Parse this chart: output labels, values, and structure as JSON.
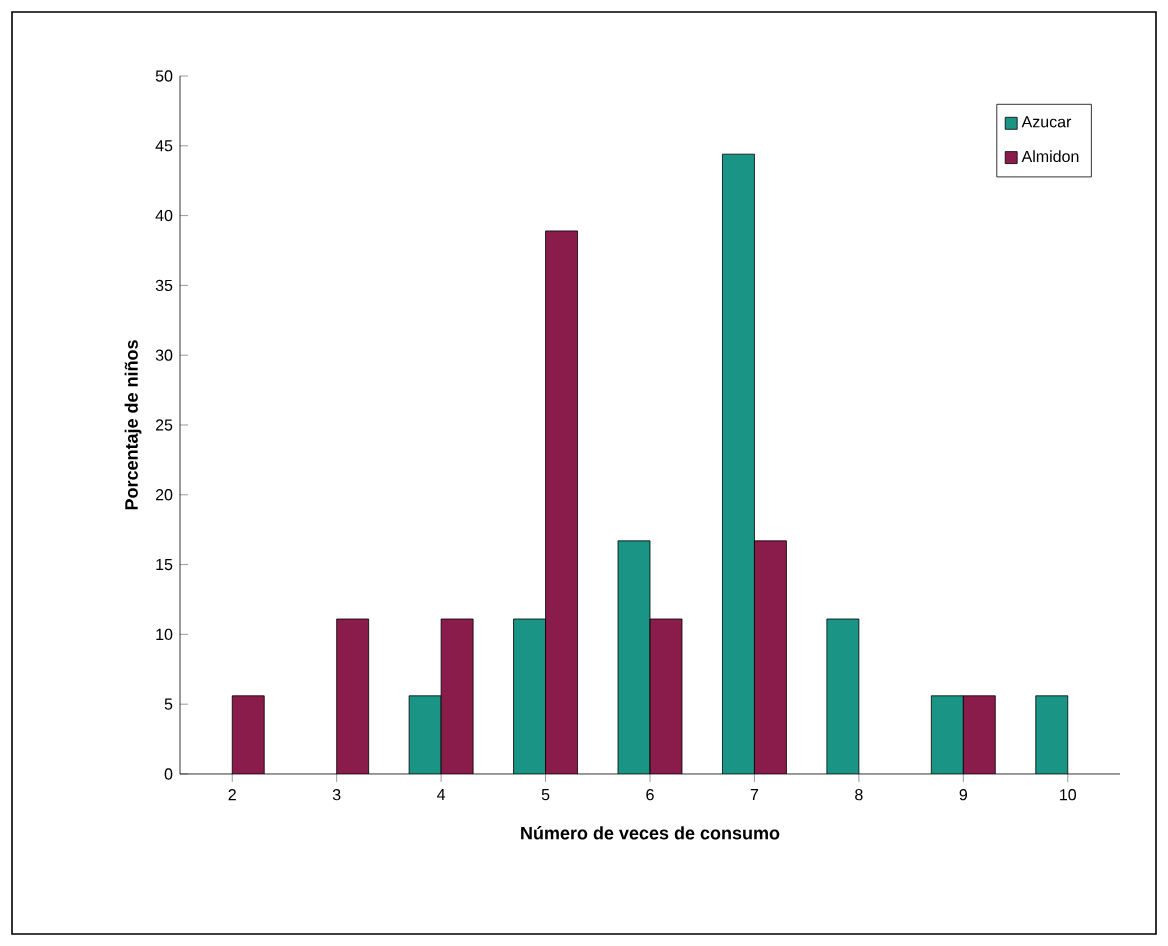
{
  "chart_data": {
    "type": "bar",
    "xlabel": "**Número de veces de consumo**",
    "ylabel": "**Porcentaje de niños**",
    "categories": [
      "2",
      "3",
      "4",
      "5",
      "6",
      "7",
      "8",
      "9",
      "10"
    ],
    "series": [
      {
        "name": "Azucar",
        "color": "#1a9484",
        "values": [
          null,
          null,
          5.6,
          11.1,
          16.7,
          44.4,
          11.1,
          5.6,
          5.6
        ]
      },
      {
        "name": "Almidon",
        "color": "#8a1c4c",
        "values": [
          5.6,
          11.1,
          11.1,
          38.9,
          11.1,
          16.7,
          null,
          5.6,
          null
        ]
      }
    ],
    "ylim": [
      0,
      50
    ],
    "yticks": [
      0,
      5,
      10,
      15,
      20,
      25,
      30,
      35,
      40,
      45,
      50
    ],
    "grid": false,
    "legend": "top right"
  }
}
